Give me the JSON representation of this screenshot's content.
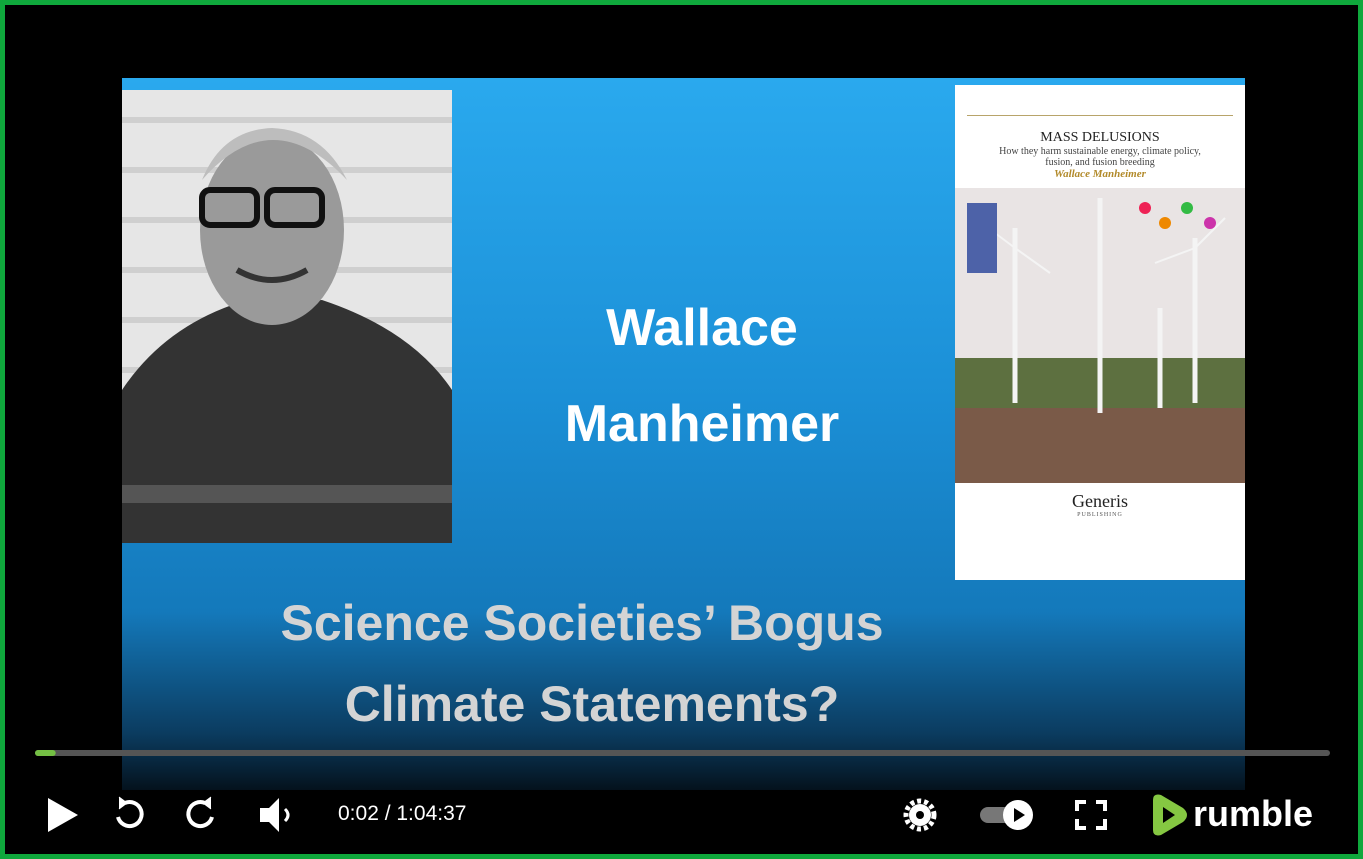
{
  "slide": {
    "name_lines": [
      "Wallace",
      "Manheimer"
    ],
    "headline_lines": [
      "Science Societies’ Bogus",
      "Climate Statements?"
    ]
  },
  "book": {
    "title": "MASS DELUSIONS",
    "subtitle_lines": [
      "How they harm sustainable energy, climate policy,",
      "fusion, and fusion breeding"
    ],
    "author": "Wallace Manheimer",
    "publisher": "Generis",
    "publisher_sub": "PUBLISHING"
  },
  "player": {
    "time": "0:02 / 1:04:37",
    "progress_percent": 1.6,
    "brand": "rumble"
  }
}
